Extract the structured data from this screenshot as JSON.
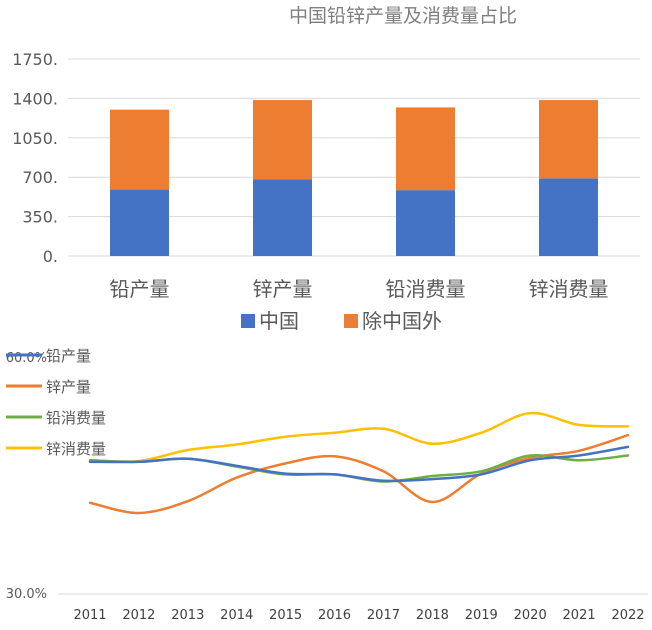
{
  "chart_data": [
    {
      "type": "bar",
      "stacked": true,
      "title": "中国铅锌产量及消费量占比",
      "categories": [
        "铅产量",
        "锌产量",
        "铅消费量",
        "锌消费量"
      ],
      "series": [
        {
          "name": "中国",
          "color": "#4472c4",
          "values": [
            590,
            680,
            585,
            690
          ]
        },
        {
          "name": "除中国外",
          "color": "#ed7d31",
          "values": [
            710,
            705,
            735,
            695
          ]
        }
      ],
      "yticks": [
        "0.",
        "350.",
        "700.",
        "1050.",
        "1400.",
        "1750."
      ],
      "ylim": [
        0,
        1750
      ],
      "grid": true,
      "legend": "bottom"
    },
    {
      "type": "line",
      "x": [
        "2011",
        "2012",
        "2013",
        "2014",
        "2015",
        "2016",
        "2017",
        "2018",
        "2019",
        "2020",
        "2021",
        "2022"
      ],
      "series": [
        {
          "name": "铅产量",
          "color": "#4472c4",
          "values": [
            46.8,
            46.8,
            47.2,
            46.3,
            45.3,
            45.2,
            44.4,
            44.6,
            45.2,
            47.0,
            47.6,
            48.7
          ]
        },
        {
          "name": "锌产量",
          "color": "#ed7d31",
          "values": [
            41.6,
            40.3,
            41.8,
            44.8,
            46.6,
            47.5,
            45.6,
            41.7,
            45.3,
            47.3,
            48.2,
            50.2
          ]
        },
        {
          "name": "铅消费量",
          "color": "#70ad47",
          "values": [
            47.0,
            46.8,
            47.2,
            46.2,
            45.2,
            45.2,
            44.3,
            45.0,
            45.6,
            47.6,
            47.0,
            47.6
          ]
        },
        {
          "name": "锌消费量",
          "color": "#ffc000",
          "values": [
            47.0,
            46.9,
            48.3,
            49.0,
            50.0,
            50.5,
            51.0,
            49.1,
            50.5,
            53.0,
            51.5,
            51.3
          ]
        }
      ],
      "yticks": [
        "30.0%",
        "60.0%"
      ],
      "ylim": [
        30,
        60
      ],
      "grid": false,
      "legend": "top-left"
    }
  ]
}
